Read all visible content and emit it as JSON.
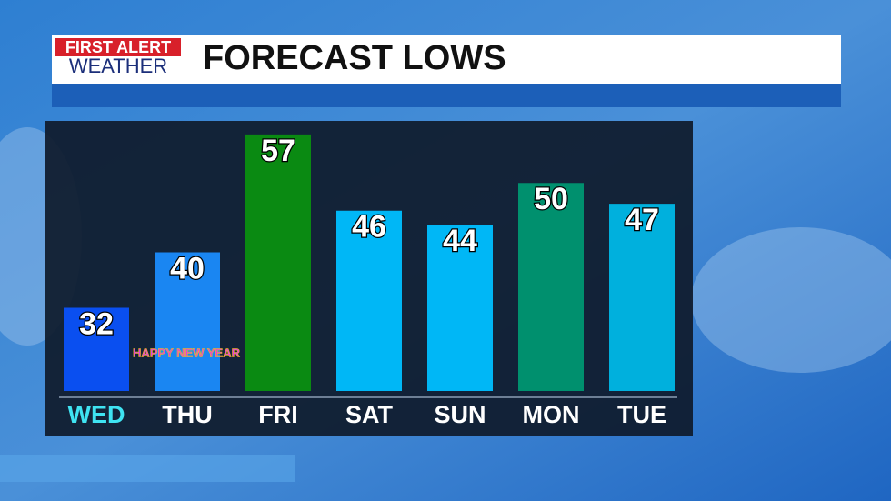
{
  "chart_data": {
    "type": "bar",
    "brand": [
      "FIRST ALERT",
      "WEATHER"
    ],
    "title": "FORECAST LOWS",
    "categories": [
      "WED",
      "THU",
      "FRI",
      "SAT",
      "SUN",
      "MON",
      "TUE"
    ],
    "values": [
      32,
      40,
      57,
      46,
      44,
      50,
      47
    ],
    "colors": [
      "#0a4ff0",
      "#1a86f2",
      "#0a8a12",
      "#00b7f6",
      "#00b7f6",
      "#00906e",
      "#00b0dd"
    ],
    "label_colors": [
      "#3fe3f2",
      "#ffffff",
      "#ffffff",
      "#ffffff",
      "#ffffff",
      "#ffffff",
      "#ffffff"
    ],
    "annotation": "HAPPY NEW YEAR",
    "ylim": [
      20,
      60
    ]
  }
}
